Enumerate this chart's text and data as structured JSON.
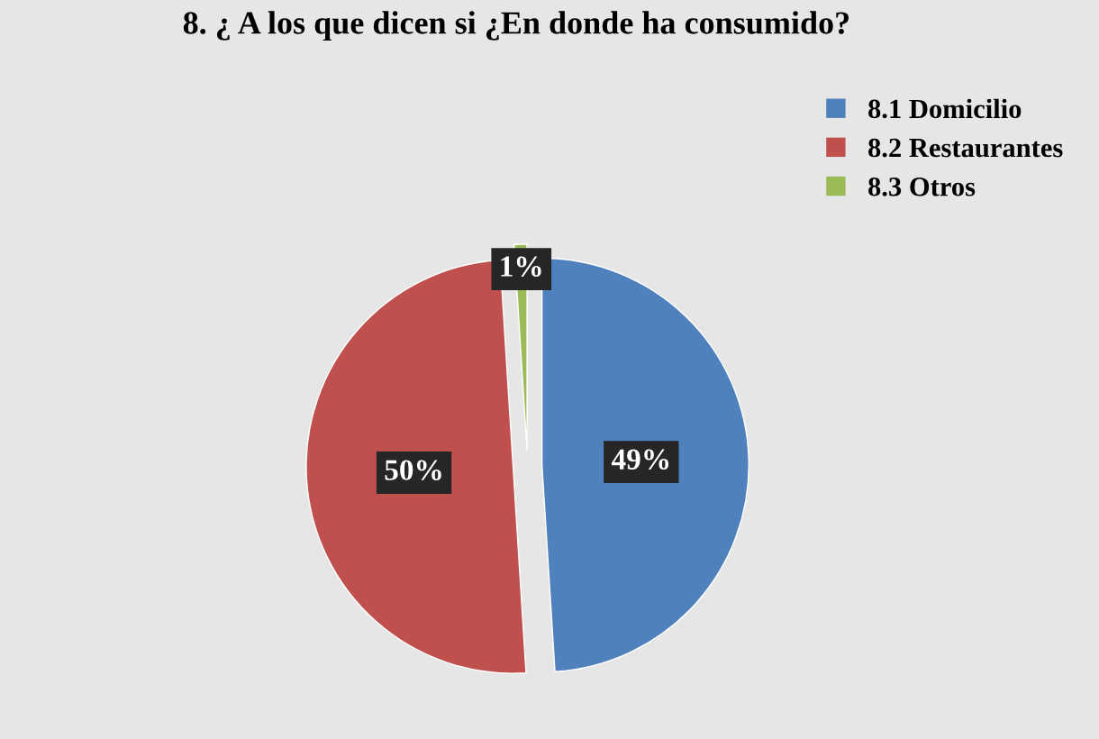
{
  "chart_data": {
    "type": "pie",
    "title": "8. ¿ A los que dicen si ¿En donde ha consumido?",
    "categories": [
      "8.1 Domicilio",
      "8.2 Restaurantes",
      "8.3 Otros"
    ],
    "values": [
      49,
      50,
      1
    ],
    "colors": [
      "#4f81bd",
      "#c0504d",
      "#9bbb59"
    ],
    "value_labels": [
      "49%",
      "50%",
      "1%"
    ],
    "legend": "top right"
  }
}
